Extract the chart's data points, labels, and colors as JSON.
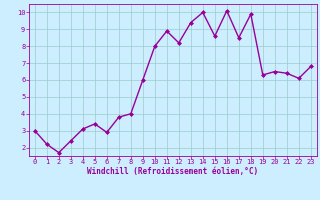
{
  "x": [
    0,
    1,
    2,
    3,
    4,
    5,
    6,
    7,
    8,
    9,
    10,
    11,
    12,
    13,
    14,
    15,
    16,
    17,
    18,
    19,
    20,
    21,
    22,
    23
  ],
  "y": [
    3.0,
    2.2,
    1.7,
    2.4,
    3.1,
    3.4,
    2.9,
    3.8,
    4.0,
    6.0,
    8.0,
    8.9,
    8.2,
    9.4,
    10.0,
    8.6,
    10.1,
    8.5,
    9.9,
    6.3,
    6.5,
    6.4,
    6.1,
    6.8
  ],
  "line_color": "#990099",
  "marker": "D",
  "marker_size": 2,
  "bg_color": "#cceeff",
  "grid_color": "#99cccc",
  "xlabel": "Windchill (Refroidissement éolien,°C)",
  "xlabel_color": "#990099",
  "tick_color": "#990099",
  "label_color": "#990099",
  "ylim": [
    1.5,
    10.5
  ],
  "xlim": [
    -0.5,
    23.5
  ],
  "yticks": [
    2,
    3,
    4,
    5,
    6,
    7,
    8,
    9,
    10
  ],
  "xticks": [
    0,
    1,
    2,
    3,
    4,
    5,
    6,
    7,
    8,
    9,
    10,
    11,
    12,
    13,
    14,
    15,
    16,
    17,
    18,
    19,
    20,
    21,
    22,
    23
  ],
  "line_width": 1.0,
  "tick_fontsize": 5.0,
  "xlabel_fontsize": 5.5
}
